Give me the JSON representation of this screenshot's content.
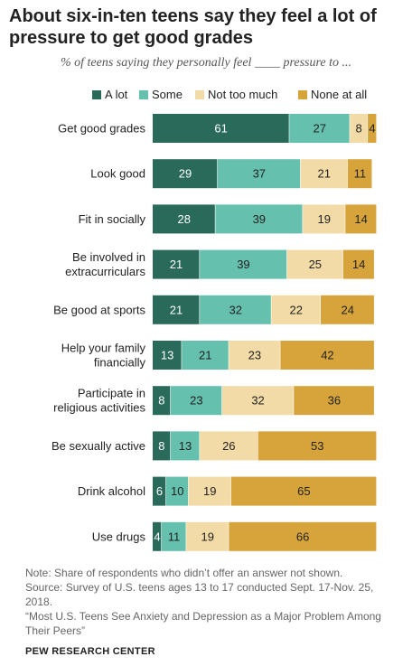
{
  "title": "About six-in-ten teens say they feel a lot of pressure to get good grades",
  "subtitle": "% of teens saying they personally feel ____ pressure to ...",
  "colors": {
    "a_lot": "#2a6a5b",
    "some": "#66c0ae",
    "not_too_much": "#f2dba6",
    "none_at_all": "#d7a43b"
  },
  "chart_data": {
    "type": "bar",
    "orientation": "horizontal",
    "stacked": true,
    "categories": [
      "Get good grades",
      "Look good",
      "Fit in socially",
      "Be involved in\nextracurriculars",
      "Be good at sports",
      "Help your family\nfinancially",
      "Participate in\nreligious activities",
      "Be sexually active",
      "Drink alcohol",
      "Use drugs"
    ],
    "series": [
      {
        "name": "A lot",
        "values": [
          61,
          29,
          28,
          21,
          21,
          13,
          8,
          8,
          6,
          4
        ]
      },
      {
        "name": "Some",
        "values": [
          27,
          37,
          39,
          39,
          32,
          21,
          23,
          13,
          10,
          11
        ]
      },
      {
        "name": "Not too much",
        "values": [
          8,
          21,
          19,
          25,
          22,
          23,
          32,
          26,
          19,
          19
        ]
      },
      {
        "name": "None at all",
        "values": [
          4,
          11,
          14,
          14,
          24,
          42,
          36,
          53,
          65,
          66
        ]
      }
    ],
    "xlim": [
      0,
      100
    ],
    "legend": "top",
    "grid": false
  },
  "notes": {
    "note": "Note: Share of respondents who didn’t offer an answer not shown.",
    "source": "Source: Survey of U.S. teens ages 13 to 17 conducted Sept. 17-Nov. 25, 2018.",
    "report": "“Most U.S. Teens See Anxiety and Depression as a Major Problem Among Their Peers”",
    "org": "PEW RESEARCH CENTER"
  }
}
